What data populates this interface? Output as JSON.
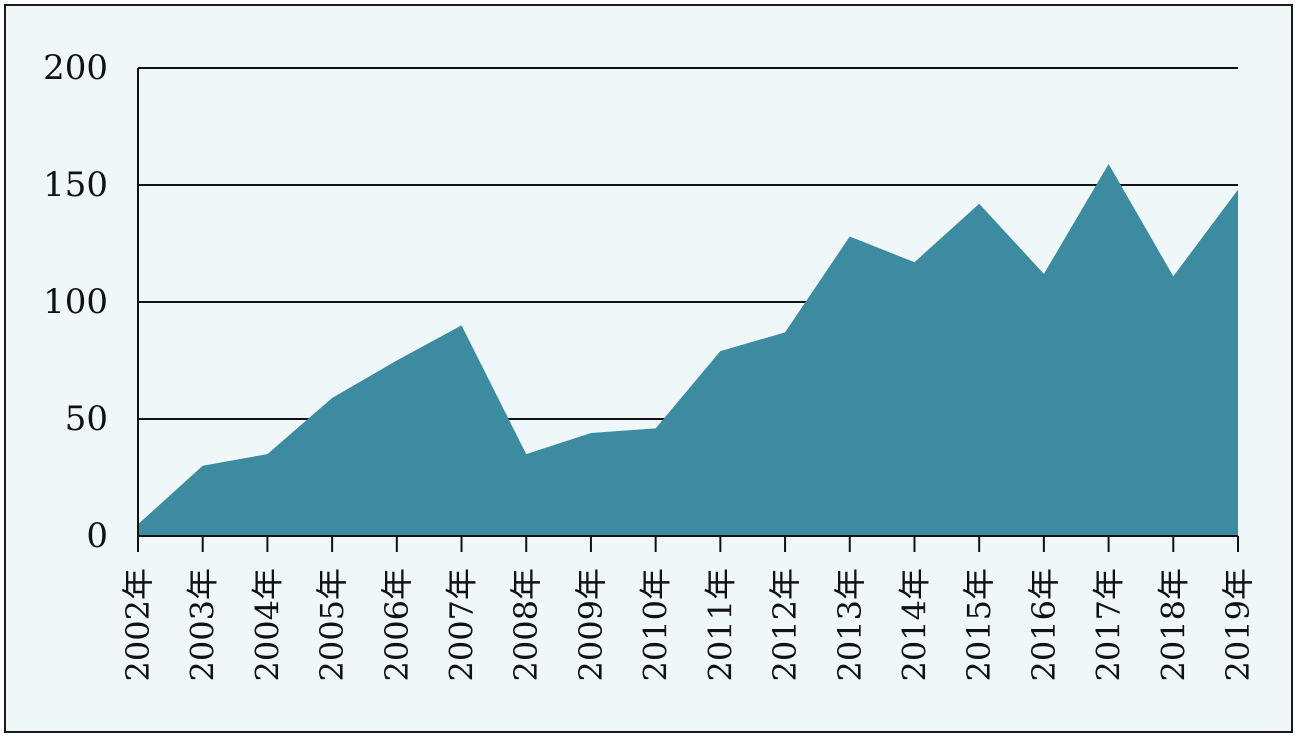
{
  "chart_data": {
    "type": "area",
    "title": "",
    "xlabel": "",
    "ylabel": "",
    "categories": [
      "2002年",
      "2003年",
      "2004年",
      "2005年",
      "2006年",
      "2007年",
      "2008年",
      "2009年",
      "2010年",
      "2011年",
      "2012年",
      "2013年",
      "2014年",
      "2015年",
      "2016年",
      "2017年",
      "2018年",
      "2019年"
    ],
    "values": [
      5,
      30,
      35,
      59,
      75,
      90,
      35,
      44,
      46,
      79,
      87,
      128,
      117,
      142,
      112,
      159,
      111,
      148
    ],
    "ylim": [
      0,
      200
    ],
    "yticks": [
      0,
      50,
      100,
      150,
      200
    ],
    "grid": true,
    "legend": "none",
    "colors": {
      "area": "#3d8ba1",
      "background": "#f0f7f9",
      "grid": "#111111"
    }
  }
}
